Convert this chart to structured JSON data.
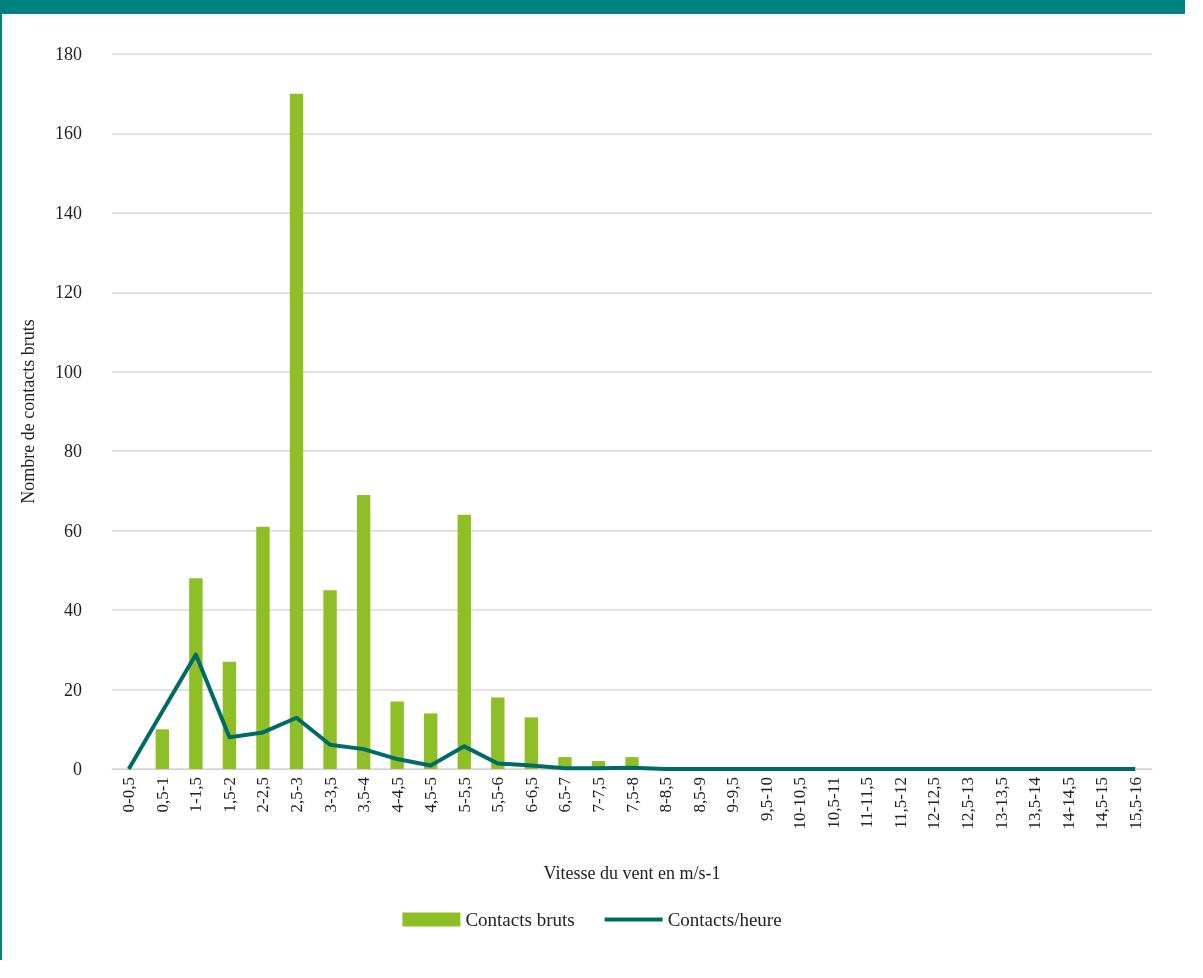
{
  "chart_data": {
    "type": "bar",
    "xlabel": "Vitesse du vent en m/s-1",
    "ylabel": "Nombre de contacts bruts",
    "categories": [
      "0-0,5",
      "0,5-1",
      "1-1,5",
      "1,5-2",
      "2-2,5",
      "2,5-3",
      "3-3,5",
      "3,5-4",
      "4-4,5",
      "4,5-5",
      "5-5,5",
      "5,5-6",
      "6-6,5",
      "6,5-7",
      "7-7,5",
      "7,5-8",
      "8-8,5",
      "8,5-9",
      "9-9,5",
      "9,5-10",
      "10-10,5",
      "10,5-11",
      "11-11,5",
      "11,5-12",
      "12-12,5",
      "12,5-13",
      "13-13,5",
      "13,5-14",
      "14-14,5",
      "14,5-15",
      "15,5-16"
    ],
    "series": [
      {
        "name": "Contacts bruts",
        "color": "#8fbf26",
        "values": [
          0,
          10,
          48,
          27,
          61,
          170,
          45,
          69,
          17,
          14,
          64,
          18,
          13,
          3,
          2,
          3,
          0,
          0,
          0,
          0,
          0,
          0,
          0,
          0,
          0,
          0,
          0,
          0,
          0,
          0,
          0
        ]
      },
      {
        "name": "Contacts/heure",
        "type": "line",
        "color": "#006b64",
        "values": [
          0,
          14.5,
          28.8,
          8,
          9.2,
          12.9,
          6.1,
          5,
          2.5,
          0.9,
          5.7,
          1.4,
          0.9,
          0.2,
          0.2,
          0.3,
          0,
          0,
          0,
          0,
          0,
          0,
          0,
          0,
          0,
          0,
          0,
          0,
          0,
          0,
          0
        ]
      }
    ],
    "ylim": [
      0,
      180
    ],
    "yticks": [
      0,
      20,
      40,
      60,
      80,
      100,
      120,
      140,
      160,
      180
    ],
    "grid": "y",
    "legend": "bottom",
    "marker": "none"
  }
}
